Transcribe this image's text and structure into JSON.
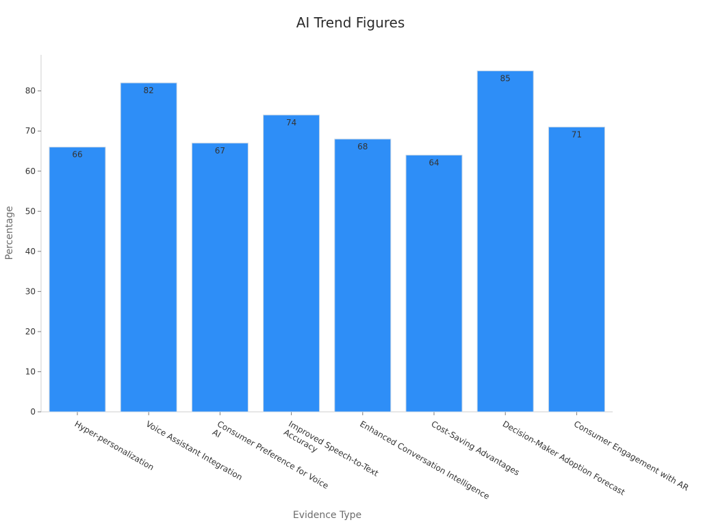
{
  "chart_data": {
    "type": "bar",
    "title": "AI Trend Figures",
    "xlabel": "Evidence Type",
    "ylabel": "Percentage",
    "categories": [
      [
        "Hyper-personalization"
      ],
      [
        "Voice Assistant Integration"
      ],
      [
        "Consumer Preference for Voice",
        "AI"
      ],
      [
        "Improved Speech-to-Text",
        "Accuracy"
      ],
      [
        "Enhanced Conversation Intelligence"
      ],
      [
        "Cost-Saving Advantages"
      ],
      [
        "Decision-Maker Adoption Forecast"
      ],
      [
        "Consumer Engagement with AR"
      ]
    ],
    "values": [
      66,
      82,
      67,
      74,
      68,
      64,
      85,
      71
    ],
    "ylim": [
      0,
      89
    ],
    "yticks": [
      0,
      10,
      20,
      30,
      40,
      50,
      60,
      70,
      80
    ],
    "grid": false,
    "legend": "none",
    "bar_color": "#2e8ef7"
  }
}
